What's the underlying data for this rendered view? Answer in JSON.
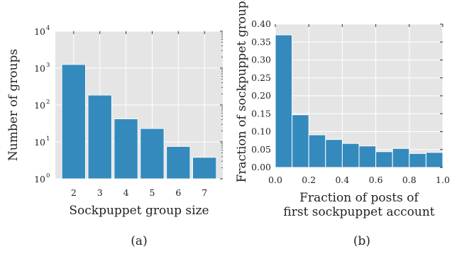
{
  "colors": {
    "bar": "#348abd",
    "panel": "#e5e5e5",
    "grid": "#ffffff",
    "edge": "#ffffff"
  },
  "chart_data": [
    {
      "type": "bar",
      "panel_label": "(a)",
      "xlabel": "Sockpuppet group size",
      "ylabel": "Number of groups",
      "yscale": "log",
      "ylim": [
        1,
        10000
      ],
      "categories": [
        "2",
        "3",
        "4",
        "5",
        "6",
        "7"
      ],
      "values": [
        1250,
        185,
        42,
        23,
        7.5,
        3.8
      ],
      "y_ticks": [
        {
          "base": "10",
          "exp": "0",
          "value": 1
        },
        {
          "base": "10",
          "exp": "1",
          "value": 10
        },
        {
          "base": "10",
          "exp": "2",
          "value": 100
        },
        {
          "base": "10",
          "exp": "3",
          "value": 1000
        },
        {
          "base": "10",
          "exp": "4",
          "value": 10000
        }
      ],
      "grid": true
    },
    {
      "type": "bar",
      "panel_label": "(b)",
      "xlabel": [
        "Fraction of posts of",
        "first sockpuppet account"
      ],
      "ylabel": "Fraction of sockpuppet groups",
      "xlim": [
        0,
        1.0
      ],
      "ylim": [
        0,
        0.4
      ],
      "bin_edges": [
        0,
        0.1,
        0.2,
        0.3,
        0.4,
        0.5,
        0.6,
        0.7,
        0.8,
        0.9,
        1.0
      ],
      "values": [
        0.37,
        0.147,
        0.091,
        0.078,
        0.067,
        0.06,
        0.044,
        0.053,
        0.039,
        0.042
      ],
      "x_ticks": [
        "0.0",
        "0.2",
        "0.4",
        "0.6",
        "0.8",
        "1.0"
      ],
      "y_ticks": [
        "0.00",
        "0.05",
        "0.10",
        "0.15",
        "0.20",
        "0.25",
        "0.30",
        "0.35",
        "0.40"
      ],
      "grid": true
    }
  ]
}
